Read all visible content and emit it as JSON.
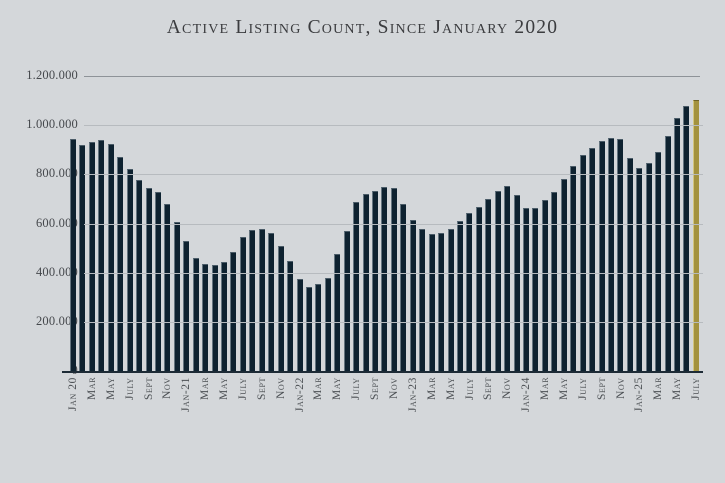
{
  "title": "Active Listing Count, Since January 2020",
  "chart_data": {
    "type": "bar",
    "title": "Active Listing Count, Since January 2020",
    "xlabel": "",
    "ylabel": "",
    "ylim": [
      0,
      1200000
    ],
    "grid": true,
    "legend": "none",
    "y_tick_labels": [
      "1.200.000",
      "1.000.000",
      "800.000",
      "600.000",
      "400.000",
      "200.000",
      "0"
    ],
    "x_tick_labels": [
      "Jan 20",
      "Mar",
      "May",
      "July",
      "Sept",
      "Nov",
      "Jan-21",
      "Mar",
      "May",
      "July",
      "Sept",
      "Nov",
      "Jan-22",
      "Mar",
      "May",
      "July",
      "Sept",
      "Nov",
      "Jan-23",
      "Mar",
      "May",
      "July",
      "Sept",
      "Nov",
      "Jan-24",
      "Mar",
      "May",
      "July",
      "Sept",
      "Nov",
      "Jan-25",
      "Mar",
      "May",
      "July"
    ],
    "months": [
      "2020-01",
      "2020-02",
      "2020-03",
      "2020-04",
      "2020-05",
      "2020-06",
      "2020-07",
      "2020-08",
      "2020-09",
      "2020-10",
      "2020-11",
      "2020-12",
      "2021-01",
      "2021-02",
      "2021-03",
      "2021-04",
      "2021-05",
      "2021-06",
      "2021-07",
      "2021-08",
      "2021-09",
      "2021-10",
      "2021-11",
      "2021-12",
      "2022-01",
      "2022-02",
      "2022-03",
      "2022-04",
      "2022-05",
      "2022-06",
      "2022-07",
      "2022-08",
      "2022-09",
      "2022-10",
      "2022-11",
      "2022-12",
      "2023-01",
      "2023-02",
      "2023-03",
      "2023-04",
      "2023-05",
      "2023-06",
      "2023-07",
      "2023-08",
      "2023-09",
      "2023-10",
      "2023-11",
      "2023-12",
      "2024-01",
      "2024-02",
      "2024-03",
      "2024-04",
      "2024-05",
      "2024-06",
      "2024-07",
      "2024-08",
      "2024-09",
      "2024-10",
      "2024-11",
      "2024-12",
      "2025-01",
      "2025-02",
      "2025-03",
      "2025-04",
      "2025-05",
      "2025-06",
      "2025-07"
    ],
    "values": [
      945000,
      921000,
      933000,
      939000,
      924000,
      869000,
      820000,
      777000,
      745000,
      729000,
      680000,
      606000,
      528000,
      461000,
      436000,
      430000,
      443000,
      486000,
      544000,
      573000,
      578000,
      561000,
      508000,
      446000,
      375000,
      343000,
      354000,
      377000,
      478000,
      569000,
      688000,
      722000,
      732000,
      749000,
      745000,
      681000,
      616000,
      576000,
      559000,
      561000,
      579000,
      609000,
      643000,
      667000,
      699000,
      734000,
      752000,
      715000,
      665000,
      662000,
      694000,
      729000,
      783000,
      834000,
      879000,
      906000,
      937000,
      949000,
      943000,
      868000,
      827000,
      845000,
      890000,
      958000,
      1031000,
      1079000,
      1104000
    ],
    "highlight_last_bar": true,
    "colors": {
      "background": "#d4d7da",
      "bar": "#0e2230",
      "highlight_bar": "#a3923f",
      "gridline": "#b7bbbf",
      "top_gridline": "#8e9398",
      "axis_line": "#1d2b36",
      "text": "#45484c",
      "title": "#3b3c3f"
    }
  }
}
